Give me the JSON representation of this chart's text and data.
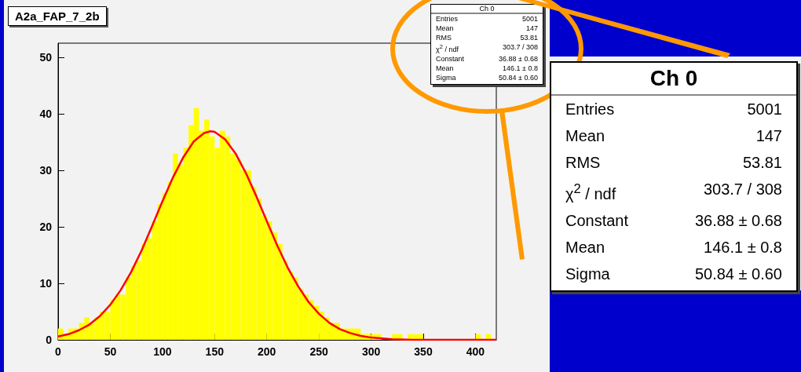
{
  "chart_data": {
    "type": "histogram",
    "title": "A2a_FAP_7_2b",
    "bins": [
      0,
      5,
      10,
      15,
      20,
      25,
      30,
      35,
      40,
      45,
      50,
      55,
      60,
      65,
      70,
      75,
      80,
      85,
      90,
      95,
      100,
      105,
      110,
      115,
      120,
      125,
      130,
      135,
      140,
      145,
      150,
      155,
      160,
      165,
      170,
      175,
      180,
      185,
      190,
      195,
      200,
      205,
      210,
      215,
      220,
      225,
      230,
      235,
      240,
      245,
      250,
      255,
      260,
      265,
      270,
      275,
      280,
      285,
      290,
      295,
      300,
      305,
      310,
      315,
      320,
      325,
      330,
      335,
      340,
      345,
      350,
      355,
      360,
      365,
      370,
      375,
      380,
      385,
      390,
      395,
      400,
      405,
      410,
      415,
      420
    ],
    "values": [
      2,
      1,
      2,
      2,
      3,
      4,
      3,
      4,
      5,
      5,
      7,
      8,
      8,
      11,
      13,
      14,
      17,
      18,
      21,
      24,
      26,
      28,
      33,
      31,
      34,
      38,
      41,
      37,
      39,
      36,
      34,
      37,
      36,
      33,
      32,
      30,
      30,
      27,
      25,
      22,
      21,
      19,
      17,
      14,
      12,
      11,
      9,
      8,
      7,
      6,
      5,
      4,
      3,
      3,
      2,
      2,
      2,
      2,
      1,
      1,
      1,
      1,
      0,
      0,
      1,
      1,
      0,
      1,
      1,
      1,
      0,
      0,
      0,
      0,
      0,
      0,
      0,
      0,
      0,
      0,
      1,
      0,
      1,
      0
    ],
    "color": "#ffff00",
    "series": [
      {
        "type": "line",
        "color": "#ff0000",
        "x": [
          0,
          10,
          20,
          30,
          40,
          50,
          60,
          70,
          80,
          90,
          100,
          110,
          120,
          130,
          140,
          146,
          150,
          160,
          170,
          180,
          190,
          200,
          210,
          220,
          230,
          240,
          250,
          260,
          270,
          280,
          290,
          300,
          320,
          340,
          360,
          420
        ],
        "values": [
          0.6,
          1.0,
          1.7,
          2.7,
          4.2,
          6.2,
          8.8,
          12.0,
          15.8,
          20.1,
          24.5,
          28.7,
          32.3,
          35.1,
          36.6,
          36.9,
          36.8,
          35.5,
          33.0,
          29.5,
          25.4,
          21.0,
          16.7,
          12.8,
          9.5,
          6.7,
          4.6,
          3.0,
          1.9,
          1.2,
          0.7,
          0.4,
          0.1,
          0,
          0,
          0
        ]
      }
    ],
    "xlim": [
      0,
      420
    ],
    "xticks": [
      0,
      50,
      100,
      150,
      200,
      250,
      300,
      350,
      400
    ],
    "ylim": [
      0,
      52.5
    ],
    "yticks": [
      0,
      10,
      20,
      30,
      40,
      50
    ],
    "grid": false,
    "annotations": [
      "Ch 0",
      "Entries",
      "5001",
      "Mean",
      "147",
      "RMS",
      "53.81",
      "χ$^{2}$ / ndf",
      "303.7 / 308",
      "Constant",
      "36.88 ± 0.68",
      "Mean",
      "146.1 ± 0.8",
      "Sigma",
      "50.84 ± 0.60"
    ]
  }
}
